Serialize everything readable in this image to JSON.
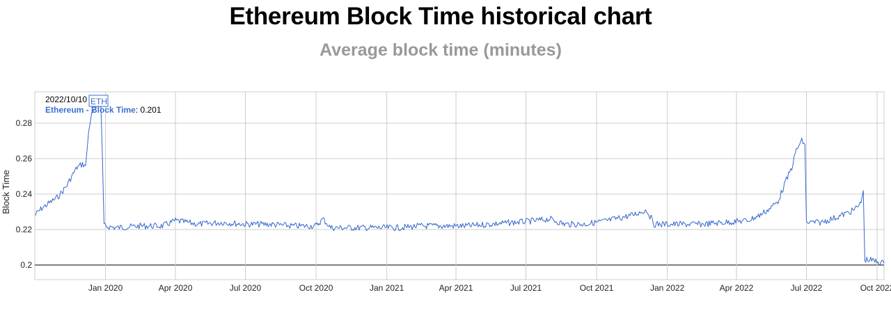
{
  "title": "Ethereum Block Time historical chart",
  "subtitle": "Average block time (minutes)",
  "chart_data": {
    "type": "line",
    "ylabel": "Block Time",
    "ylim": [
      0.2,
      0.298
    ],
    "xlim": [
      "2019-10-01",
      "2022-10-10"
    ],
    "grid": true,
    "yticks": [
      0.2,
      0.22,
      0.24,
      0.26,
      0.28
    ],
    "ytick_labels": [
      "0.2",
      "0.22",
      "0.24",
      "0.26",
      "0.28"
    ],
    "xticks": [
      "2020-01-01",
      "2020-04-01",
      "2020-07-01",
      "2020-10-01",
      "2021-01-01",
      "2021-04-01",
      "2021-07-01",
      "2021-10-01",
      "2022-01-01",
      "2022-04-01",
      "2022-07-01",
      "2022-10-01"
    ],
    "xtick_labels": [
      "Jan 2020",
      "Apr 2020",
      "Jul 2020",
      "Oct 2020",
      "Jan 2021",
      "Apr 2021",
      "Jul 2021",
      "Oct 2021",
      "Jan 2022",
      "Apr 2022",
      "Jul 2022",
      "Oct 2022"
    ],
    "series": [
      {
        "color": "#3366cc",
        "points": [
          [
            "2019-10-01",
            0.228
          ],
          [
            "2019-10-10",
            0.232
          ],
          [
            "2019-10-20",
            0.235
          ],
          [
            "2019-10-30",
            0.238
          ],
          [
            "2019-11-05",
            0.241
          ],
          [
            "2019-11-12",
            0.245
          ],
          [
            "2019-11-18",
            0.25
          ],
          [
            "2019-11-25",
            0.255
          ],
          [
            "2019-12-02",
            0.257
          ],
          [
            "2019-12-06",
            0.256
          ],
          [
            "2019-12-08",
            0.265
          ],
          [
            "2019-12-10",
            0.275
          ],
          [
            "2019-12-14",
            0.285
          ],
          [
            "2019-12-20",
            0.29
          ],
          [
            "2019-12-26",
            0.289
          ],
          [
            "2019-12-28",
            0.26
          ],
          [
            "2019-12-30",
            0.222
          ],
          [
            "2020-01-15",
            0.221
          ],
          [
            "2020-02-15",
            0.222
          ],
          [
            "2020-03-15",
            0.222
          ],
          [
            "2020-04-01",
            0.225
          ],
          [
            "2020-05-01",
            0.223
          ],
          [
            "2020-06-01",
            0.224
          ],
          [
            "2020-07-01",
            0.223
          ],
          [
            "2020-08-01",
            0.223
          ],
          [
            "2020-09-01",
            0.222
          ],
          [
            "2020-10-01",
            0.222
          ],
          [
            "2020-10-10",
            0.226
          ],
          [
            "2020-10-20",
            0.221
          ],
          [
            "2020-11-15",
            0.221
          ],
          [
            "2020-12-15",
            0.221
          ],
          [
            "2021-01-15",
            0.221
          ],
          [
            "2021-02-15",
            0.222
          ],
          [
            "2021-03-15",
            0.222
          ],
          [
            "2021-04-15",
            0.222
          ],
          [
            "2021-05-15",
            0.223
          ],
          [
            "2021-06-15",
            0.224
          ],
          [
            "2021-07-15",
            0.225
          ],
          [
            "2021-08-01",
            0.226
          ],
          [
            "2021-08-20",
            0.223
          ],
          [
            "2021-09-15",
            0.223
          ],
          [
            "2021-10-15",
            0.225
          ],
          [
            "2021-11-15",
            0.228
          ],
          [
            "2021-12-05",
            0.231
          ],
          [
            "2021-12-15",
            0.223
          ],
          [
            "2022-01-15",
            0.223
          ],
          [
            "2022-02-15",
            0.223
          ],
          [
            "2022-03-15",
            0.224
          ],
          [
            "2022-04-15",
            0.225
          ],
          [
            "2022-05-01",
            0.228
          ],
          [
            "2022-05-15",
            0.232
          ],
          [
            "2022-05-25",
            0.236
          ],
          [
            "2022-06-05",
            0.248
          ],
          [
            "2022-06-12",
            0.255
          ],
          [
            "2022-06-18",
            0.265
          ],
          [
            "2022-06-25",
            0.27
          ],
          [
            "2022-06-29",
            0.268
          ],
          [
            "2022-07-01",
            0.224
          ],
          [
            "2022-07-20",
            0.224
          ],
          [
            "2022-08-10",
            0.227
          ],
          [
            "2022-09-01",
            0.231
          ],
          [
            "2022-09-10",
            0.235
          ],
          [
            "2022-09-13",
            0.242
          ],
          [
            "2022-09-15",
            0.203
          ],
          [
            "2022-09-20",
            0.203
          ],
          [
            "2022-10-10",
            0.201
          ]
        ]
      }
    ],
    "tooltip": {
      "date": "2022/10/10",
      "flag": "ETH",
      "series_label": "Ethereum - Block Time",
      "value": "0.201"
    }
  }
}
